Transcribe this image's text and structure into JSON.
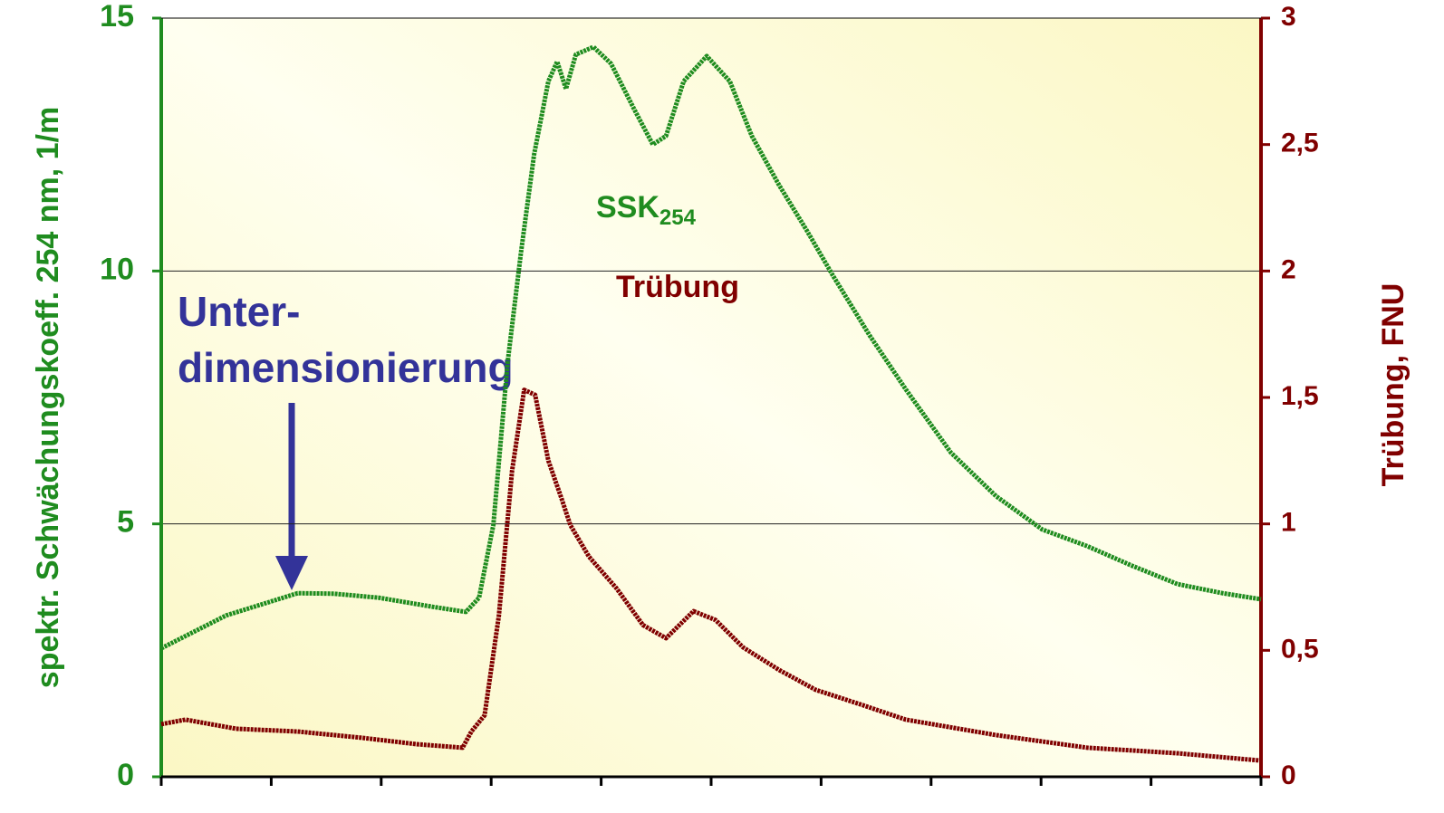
{
  "chart_data": {
    "type": "line",
    "ylabel": "spektr. Schwächungskoeff. 254 nm, 1/m",
    "y2label": "Trübung, FNU",
    "xlim": [
      0,
      10
    ],
    "xticks": [
      0,
      1,
      2,
      3,
      4,
      5,
      6,
      7,
      8,
      9,
      10
    ],
    "ylim": [
      0,
      15
    ],
    "yticks": [
      0,
      5,
      10,
      15
    ],
    "y2lim": [
      0,
      3
    ],
    "y2ticks": [
      0,
      {
        "value": 0.5,
        "label": "0,5"
      },
      1,
      {
        "value": 1.5,
        "label": "1,5"
      },
      2,
      {
        "value": 2.5,
        "label": "2,5"
      },
      3
    ],
    "grid": true,
    "series": [
      {
        "name": "SSK254",
        "color": "#1f8c1f",
        "x": [
          0,
          0.59,
          1.24,
          1.57,
          1.98,
          2.47,
          2.77,
          2.89,
          3.02,
          3.15,
          3.27,
          3.39,
          3.52,
          3.6,
          3.68,
          3.77,
          3.93,
          4.09,
          4.3,
          4.47,
          4.59,
          4.75,
          4.96,
          5.17,
          5.37,
          5.62,
          5.87,
          6.11,
          6.44,
          6.77,
          7.18,
          7.59,
          8.01,
          8.42,
          8.83,
          9.24,
          9.65,
          10
        ],
        "values": [
          2.54,
          3.19,
          3.63,
          3.62,
          3.54,
          3.36,
          3.26,
          3.54,
          4.98,
          8.2,
          10.35,
          12.3,
          13.75,
          14.14,
          13.6,
          14.28,
          14.43,
          14.1,
          13.2,
          12.5,
          12.67,
          13.75,
          14.25,
          13.75,
          12.67,
          11.69,
          10.8,
          9.9,
          8.73,
          7.66,
          6.41,
          5.55,
          4.89,
          4.56,
          4.17,
          3.81,
          3.63,
          3.51
        ]
      },
      {
        "name": "Trübung",
        "color": "#800000",
        "axis": "y2",
        "x": [
          0,
          0.22,
          0.68,
          1.24,
          1.83,
          2.32,
          2.74,
          2.82,
          2.94,
          3.07,
          3.19,
          3.3,
          3.4,
          3.52,
          3.64,
          3.72,
          3.89,
          4.14,
          4.38,
          4.59,
          4.84,
          5.04,
          5.29,
          5.62,
          5.95,
          6.36,
          6.77,
          7.59,
          8.42,
          9.24,
          10
        ],
        "values": [
          0.208,
          0.226,
          0.19,
          0.179,
          0.154,
          0.129,
          0.115,
          0.179,
          0.243,
          0.637,
          1.21,
          1.53,
          1.51,
          1.25,
          1.1,
          0.995,
          0.87,
          0.745,
          0.6,
          0.548,
          0.655,
          0.62,
          0.512,
          0.422,
          0.344,
          0.286,
          0.226,
          0.165,
          0.115,
          0.093,
          0.064
        ]
      }
    ],
    "annotations": {
      "ssk": "SSK",
      "ssk_sub": "254",
      "truebung": "Trübung",
      "note_line1": "Unter-",
      "note_line2": "dimensionierung"
    }
  }
}
